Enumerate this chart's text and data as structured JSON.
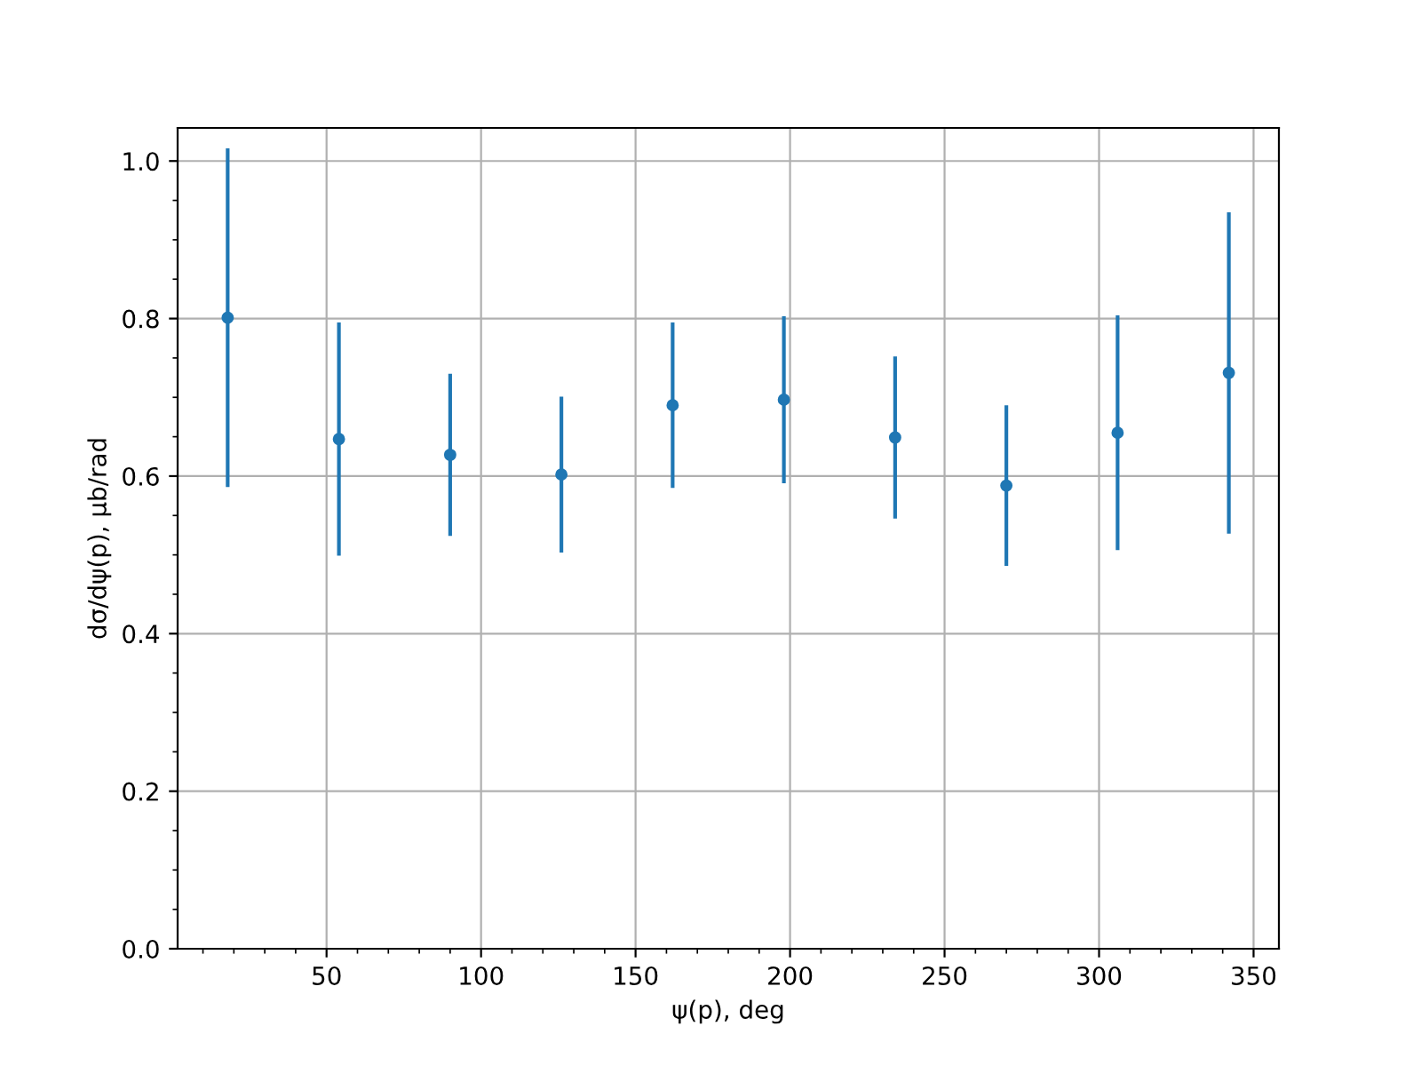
{
  "chart_data": {
    "type": "scatter",
    "xlabel": "ψ(p), deg",
    "ylabel": "dσ/dψ(p), µb/rad",
    "x": [
      18,
      54,
      90,
      126,
      162,
      198,
      234,
      270,
      306,
      342
    ],
    "series": [
      {
        "color": "#1f77b4",
        "values": [
          0.801,
          0.647,
          0.627,
          0.602,
          0.69,
          0.697,
          0.649,
          0.588,
          0.655,
          0.731
        ],
        "errors": [
          0.215,
          0.148,
          0.103,
          0.099,
          0.105,
          0.106,
          0.103,
          0.102,
          0.149,
          0.204
        ]
      }
    ],
    "xlim": [
      1.8,
      358.2
    ],
    "ylim": [
      0,
      1.042
    ],
    "xticks": [
      {
        "value": 10,
        "label": null
      },
      {
        "value": 20,
        "label": null
      },
      {
        "value": 30,
        "label": null
      },
      {
        "value": 40,
        "label": null
      },
      50,
      {
        "value": 60,
        "label": null
      },
      {
        "value": 70,
        "label": null
      },
      {
        "value": 80,
        "label": null
      },
      {
        "value": 90,
        "label": null
      },
      100,
      {
        "value": 110,
        "label": null
      },
      {
        "value": 120,
        "label": null
      },
      {
        "value": 130,
        "label": null
      },
      {
        "value": 140,
        "label": null
      },
      150,
      {
        "value": 160,
        "label": null
      },
      {
        "value": 170,
        "label": null
      },
      {
        "value": 180,
        "label": null
      },
      {
        "value": 190,
        "label": null
      },
      200,
      {
        "value": 210,
        "label": null
      },
      {
        "value": 220,
        "label": null
      },
      {
        "value": 230,
        "label": null
      },
      {
        "value": 240,
        "label": null
      },
      250,
      {
        "value": 260,
        "label": null
      },
      {
        "value": 270,
        "label": null
      },
      {
        "value": 280,
        "label": null
      },
      {
        "value": 290,
        "label": null
      },
      300,
      {
        "value": 310,
        "label": null
      },
      {
        "value": 320,
        "label": null
      },
      {
        "value": 330,
        "label": null
      },
      {
        "value": 340,
        "label": null
      },
      350
    ],
    "yticks": [
      {
        "value": 0,
        "label": "0.0"
      },
      {
        "value": 0.05,
        "label": null
      },
      {
        "value": 0.1,
        "label": null
      },
      {
        "value": 0.15,
        "label": null
      },
      {
        "value": 0.2,
        "label": "0.2"
      },
      {
        "value": 0.25,
        "label": null
      },
      {
        "value": 0.3,
        "label": null
      },
      {
        "value": 0.35,
        "label": null
      },
      {
        "value": 0.4,
        "label": "0.4"
      },
      {
        "value": 0.45,
        "label": null
      },
      {
        "value": 0.5,
        "label": null
      },
      {
        "value": 0.55,
        "label": null
      },
      {
        "value": 0.6,
        "label": "0.6"
      },
      {
        "value": 0.65,
        "label": null
      },
      {
        "value": 0.7,
        "label": null
      },
      {
        "value": 0.75,
        "label": null
      },
      {
        "value": 0.8,
        "label": "0.8"
      },
      {
        "value": 0.85,
        "label": null
      },
      {
        "value": 0.9,
        "label": null
      },
      {
        "value": 0.95,
        "label": null
      },
      {
        "value": 1.0,
        "label": "1.0"
      }
    ],
    "grid": true,
    "marker": "circle"
  }
}
